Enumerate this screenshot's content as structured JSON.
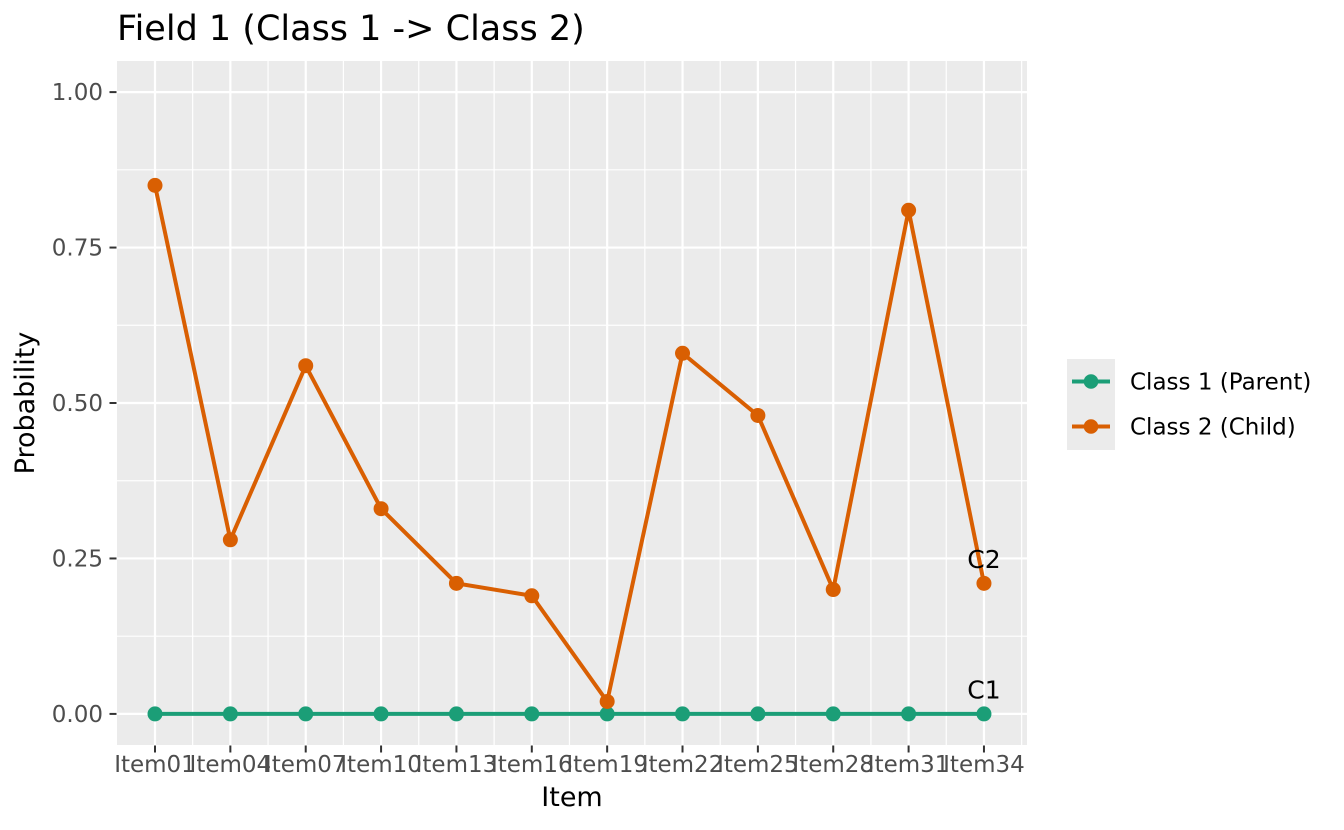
{
  "title": "Field 1 (Class 1 -> Class 2)",
  "colors": {
    "panel_bg": "#EBEBEB",
    "grid": "#FFFFFF",
    "tick_mark": "#333333",
    "tick_text": "#4D4D4D",
    "text": "#000000",
    "legend_key_bg": "#EBEBEB",
    "series_class1": "#1B9E77",
    "series_class2": "#D95F02"
  },
  "chart_data": {
    "type": "line",
    "title": "Field 1 (Class 1 -> Class 2)",
    "xlabel": "Item",
    "ylabel": "Probability",
    "categories": [
      "Item01",
      "Item04",
      "Item07",
      "Item10",
      "Item13",
      "Item16",
      "Item19",
      "Item22",
      "Item25",
      "Item28",
      "Item31",
      "Item34"
    ],
    "y_ticks": [
      {
        "label": "0.00",
        "value": 0.0
      },
      {
        "label": "0.25",
        "value": 0.25
      },
      {
        "label": "0.50",
        "value": 0.5
      },
      {
        "label": "0.75",
        "value": 0.75
      },
      {
        "label": "1.00",
        "value": 1.0
      }
    ],
    "ylim": [
      0,
      1
    ],
    "grid": true,
    "legend_position": "right",
    "series": [
      {
        "name": "Class 1 (Parent)",
        "color": "#1B9E77",
        "end_label": "C1",
        "values": [
          0.0,
          0.0,
          0.0,
          0.0,
          0.0,
          0.0,
          0.0,
          0.0,
          0.0,
          0.0,
          0.0,
          0.0
        ]
      },
      {
        "name": "Class 2 (Child)",
        "color": "#D95F02",
        "end_label": "C2",
        "values": [
          0.85,
          0.28,
          0.56,
          0.33,
          0.21,
          0.19,
          0.02,
          0.58,
          0.48,
          0.2,
          0.81,
          0.21
        ]
      }
    ],
    "annotations": [
      "C1",
      "C2"
    ]
  }
}
